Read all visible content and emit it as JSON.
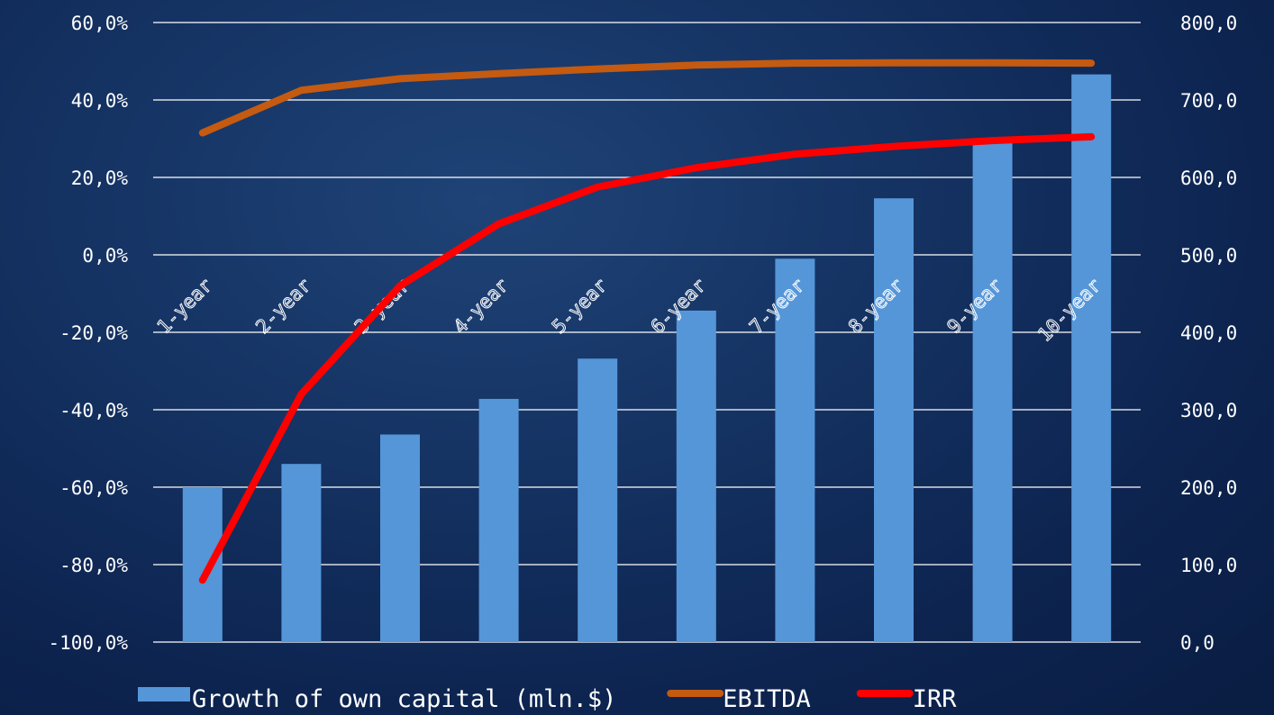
{
  "chart_data": {
    "type": "bar",
    "categories": [
      "1-year",
      "2-year",
      "3-year",
      "4-year",
      "5-year",
      "6-year",
      "7-year",
      "8-year",
      "9-year",
      "10-year"
    ],
    "left_axis": {
      "ticks": [
        "60,0%",
        "40,0%",
        "20,0%",
        "0,0%",
        "-20,0%",
        "-40,0%",
        "-60,0%",
        "-80,0%",
        "-100,0%"
      ],
      "range": [
        -100,
        60
      ]
    },
    "right_axis": {
      "ticks": [
        "800,0",
        "700,0",
        "600,0",
        "500,0",
        "400,0",
        "300,0",
        "200,0",
        "100,0",
        "0,0"
      ],
      "range": [
        0,
        800
      ]
    },
    "grid": true,
    "legend_position": "bottom",
    "series": [
      {
        "name": "Growth of own capital (mln.$)",
        "type": "bar",
        "axis": "right",
        "color": "#5596d8",
        "values": [
          200,
          230,
          268,
          314,
          366,
          428,
          495,
          573,
          650,
          733
        ]
      },
      {
        "name": "EBITDA",
        "type": "line",
        "axis": "left",
        "color": "#c55a11",
        "values": [
          31.5,
          42.5,
          45.5,
          46.8,
          48.0,
          49.0,
          49.5,
          49.6,
          49.6,
          49.5
        ]
      },
      {
        "name": "IRR",
        "type": "line",
        "axis": "left",
        "color": "#ff0000",
        "values": [
          -84.0,
          -36.0,
          -8.0,
          8.0,
          17.5,
          22.5,
          26.0,
          28.0,
          29.5,
          30.5
        ]
      }
    ]
  }
}
